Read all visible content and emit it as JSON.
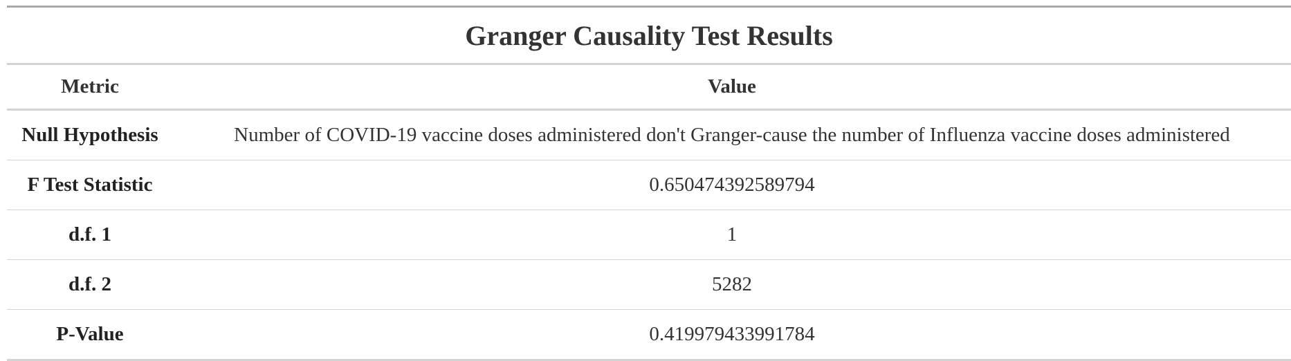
{
  "table": {
    "title": "Granger Causality Test Results",
    "columns": [
      "Metric",
      "Value"
    ],
    "rows": [
      {
        "metric": "Null Hypothesis",
        "value": "Number of COVID-19 vaccine doses administered don't Granger-cause the number of Influenza vaccine doses administered"
      },
      {
        "metric": "F Test Statistic",
        "value": "0.650474392589794"
      },
      {
        "metric": "d.f. 1",
        "value": "1"
      },
      {
        "metric": "d.f. 2",
        "value": "5282"
      },
      {
        "metric": "P-Value",
        "value": "0.419979433991784"
      }
    ]
  },
  "colors": {
    "text": "#333333",
    "rule_dark": "#a8a8a8",
    "rule_light": "#d3d3d3"
  }
}
